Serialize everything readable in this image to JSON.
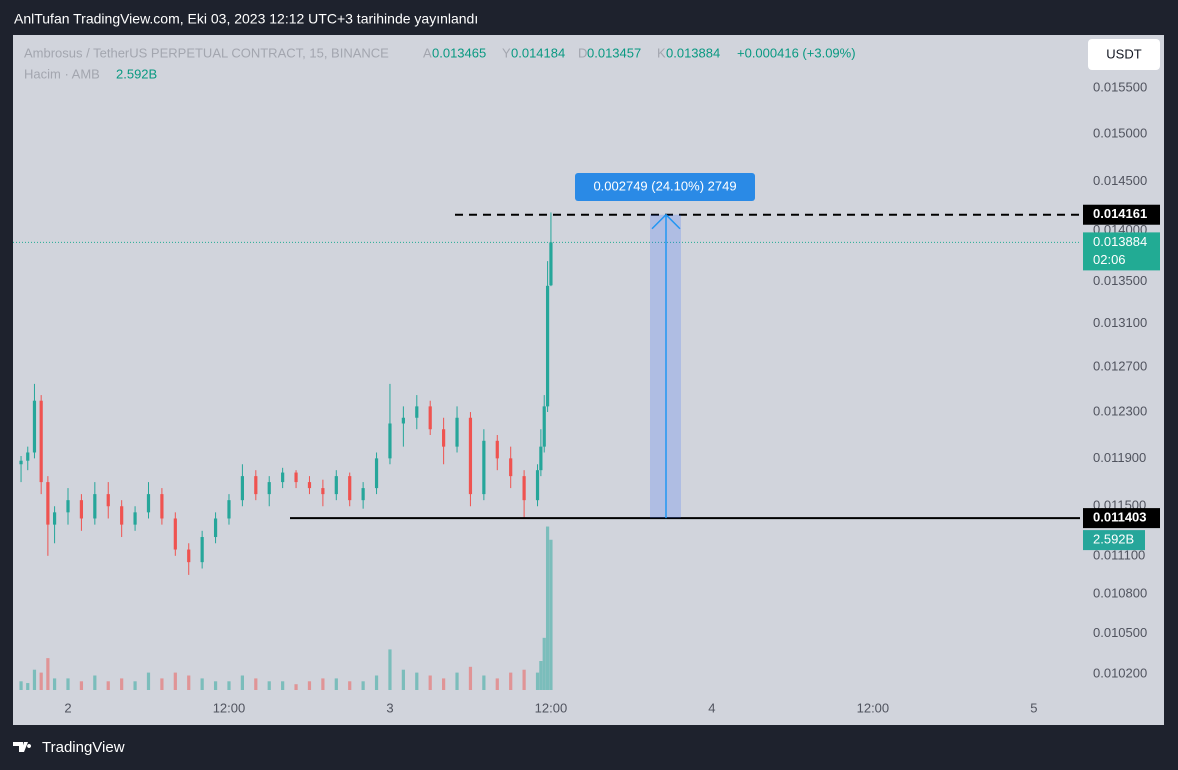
{
  "header": {
    "title": "AnlTufan TradingView.com, Eki 03, 2023 12:12 UTC+3 tarihinde yayınlandı"
  },
  "footer": {
    "brand": "TradingView"
  },
  "currency_button": "USDT",
  "chart_data": {
    "type": "candlestick",
    "symbol": "Ambrosus / TetherUS PERPETUAL CONTRACT, 15, BINANCE",
    "ohlc_keys": [
      "A",
      "Y",
      "D",
      "K"
    ],
    "change": "+0.000416 (+3.09%)",
    "countdown": "02:06",
    "colors": {
      "up": "#26a69a",
      "down": "#ef5350"
    },
    "log_scale": true,
    "grid": false,
    "ylim": [
      0.01005,
      0.0161
    ],
    "yticks": [
      {
        "value": 0.0155,
        "label": "0.015500"
      },
      {
        "value": 0.015,
        "label": "0.015000"
      },
      {
        "value": 0.0145,
        "label": "0.014500"
      },
      {
        "value": 0.014,
        "label": "0.014000"
      },
      {
        "value": 0.0135,
        "label": "0.013500"
      },
      {
        "value": 0.0131,
        "label": "0.013100"
      },
      {
        "value": 0.0127,
        "label": "0.012700"
      },
      {
        "value": 0.0123,
        "label": "0.012300"
      },
      {
        "value": 0.0119,
        "label": "0.011900"
      },
      {
        "value": 0.0115,
        "label": "0.011500"
      },
      {
        "value": 0.0111,
        "label": "0.011100"
      },
      {
        "value": 0.0108,
        "label": "0.010800"
      },
      {
        "value": 0.0105,
        "label": "0.010500"
      },
      {
        "value": 0.0102,
        "label": "0.010200"
      }
    ],
    "xlim": [
      -4.1,
      81.7
    ],
    "xticks": [
      {
        "value": 0,
        "label": "2"
      },
      {
        "value": 12,
        "label": "12:00"
      },
      {
        "value": 24,
        "label": "3"
      },
      {
        "value": 36,
        "label": "12:00"
      },
      {
        "value": 48,
        "label": "4"
      },
      {
        "value": 60,
        "label": "12:00"
      },
      {
        "value": 72,
        "label": "5"
      }
    ],
    "x": [
      -3.5,
      -3,
      -2.5,
      -2,
      -1.5,
      -1,
      0,
      1,
      2,
      3,
      4,
      5,
      6,
      7,
      8,
      9,
      10,
      11,
      12,
      13,
      14,
      15,
      16,
      17,
      18,
      19,
      20,
      21,
      22,
      23,
      24,
      25,
      26,
      27,
      28,
      29,
      30,
      31,
      32,
      33,
      34,
      35,
      35.25,
      35.5,
      35.75,
      36
    ],
    "open": [
      0.01185,
      0.01188,
      0.01195,
      0.0124,
      0.0117,
      0.01135,
      0.01145,
      0.01155,
      0.0114,
      0.0116,
      0.0115,
      0.01135,
      0.01145,
      0.0116,
      0.0114,
      0.01115,
      0.01105,
      0.01125,
      0.0114,
      0.01155,
      0.01175,
      0.0116,
      0.0117,
      0.01178,
      0.0117,
      0.01165,
      0.0116,
      0.01175,
      0.01155,
      0.01165,
      0.0119,
      0.0122,
      0.01225,
      0.01235,
      0.01215,
      0.012,
      0.01225,
      0.0116,
      0.01205,
      0.0119,
      0.01175,
      0.01155,
      0.0118,
      0.012,
      0.01235,
      0.013465
    ],
    "high": [
      0.01192,
      0.012,
      0.01255,
      0.01245,
      0.01175,
      0.0115,
      0.01165,
      0.0116,
      0.0117,
      0.0117,
      0.01155,
      0.0115,
      0.0117,
      0.01165,
      0.01145,
      0.0112,
      0.0113,
      0.01145,
      0.0116,
      0.01185,
      0.0118,
      0.01175,
      0.01182,
      0.0118,
      0.01175,
      0.01172,
      0.0118,
      0.01178,
      0.0117,
      0.01195,
      0.01255,
      0.01235,
      0.01245,
      0.0124,
      0.01225,
      0.01235,
      0.0123,
      0.01215,
      0.0121,
      0.012,
      0.0118,
      0.01185,
      0.01215,
      0.01245,
      0.0137,
      0.014184
    ],
    "low": [
      0.0117,
      0.0118,
      0.0119,
      0.0116,
      0.0111,
      0.0112,
      0.01135,
      0.0113,
      0.01135,
      0.0114,
      0.01125,
      0.0113,
      0.0114,
      0.01135,
      0.0111,
      0.01095,
      0.011,
      0.0112,
      0.01135,
      0.0115,
      0.01155,
      0.0115,
      0.01165,
      0.01165,
      0.0116,
      0.0115,
      0.01155,
      0.0115,
      0.01148,
      0.0116,
      0.01185,
      0.012,
      0.01215,
      0.0121,
      0.01185,
      0.01195,
      0.0115,
      0.01155,
      0.0118,
      0.01165,
      0.0114,
      0.0115,
      0.01175,
      0.01195,
      0.0123,
      0.013457
    ],
    "close": [
      0.01188,
      0.01195,
      0.0124,
      0.0117,
      0.01135,
      0.01145,
      0.01155,
      0.0114,
      0.0116,
      0.0115,
      0.01135,
      0.01145,
      0.0116,
      0.0114,
      0.01115,
      0.01105,
      0.01125,
      0.0114,
      0.01155,
      0.01175,
      0.0116,
      0.0117,
      0.01178,
      0.0117,
      0.01165,
      0.0116,
      0.01175,
      0.01155,
      0.01165,
      0.0119,
      0.0122,
      0.01225,
      0.01235,
      0.01215,
      0.012,
      0.01225,
      0.0116,
      0.01205,
      0.0119,
      0.01175,
      0.01155,
      0.0118,
      0.012,
      0.01235,
      0.01346,
      0.013884
    ],
    "volume": {
      "name": "Hacim · AMB",
      "ylim": [
        0,
        11300000000
      ],
      "last_label": "2.592B",
      "values": [
        150000000,
        120000000,
        350000000,
        300000000,
        550000000,
        200000000,
        200000000,
        150000000,
        250000000,
        150000000,
        200000000,
        150000000,
        300000000,
        200000000,
        300000000,
        250000000,
        200000000,
        150000000,
        150000000,
        250000000,
        200000000,
        150000000,
        150000000,
        100000000,
        150000000,
        200000000,
        200000000,
        150000000,
        150000000,
        250000000,
        700000000,
        350000000,
        300000000,
        250000000,
        200000000,
        300000000,
        400000000,
        250000000,
        200000000,
        300000000,
        350000000,
        300000000,
        500000000,
        900000000,
        2820000000,
        2592000000
      ]
    },
    "lines": [
      {
        "value": 0.014161,
        "style": "dashed"
      },
      {
        "value": 0.011403,
        "style": "solid"
      }
    ],
    "measure": {
      "label": "0.002749 (24.10%) 2749"
    }
  }
}
